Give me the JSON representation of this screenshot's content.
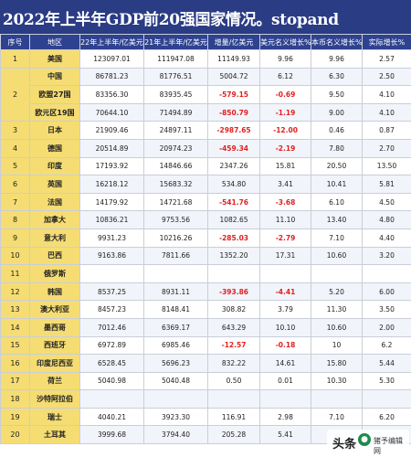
{
  "title": "2022年上半年GDP前20强国家情况。stopand",
  "headers": [
    "序号",
    "地区",
    "22年上半年/亿美元",
    "21年上半年/亿美元",
    "增量/亿美元",
    "美元名义增长%",
    "本币名义增长%",
    "实际增长%"
  ],
  "rows": [
    {
      "idx": "1",
      "region": "美国",
      "gdp22": "123097.01",
      "gdp21": "111947.08",
      "delta": "11149.93",
      "usd": "9.96",
      "local": "9.96",
      "real": "2.57"
    },
    {
      "idx": "",
      "region": "中国",
      "gdp22": "86781.23",
      "gdp21": "81776.51",
      "delta": "5004.72",
      "usd": "6.12",
      "local": "6.30",
      "real": "2.50"
    },
    {
      "idx": "2",
      "region": "欧盟27国",
      "gdp22": "83356.30",
      "gdp21": "83935.45",
      "delta": "-579.15",
      "usd": "-0.69",
      "local": "9.50",
      "real": "4.10"
    },
    {
      "idx": "",
      "region": "欧元区19国",
      "gdp22": "70644.10",
      "gdp21": "71494.89",
      "delta": "-850.79",
      "usd": "-1.19",
      "local": "9.00",
      "real": "4.10"
    },
    {
      "idx": "3",
      "region": "日本",
      "gdp22": "21909.46",
      "gdp21": "24897.11",
      "delta": "-2987.65",
      "usd": "-12.00",
      "local": "0.46",
      "real": "0.87"
    },
    {
      "idx": "4",
      "region": "德国",
      "gdp22": "20514.89",
      "gdp21": "20974.23",
      "delta": "-459.34",
      "usd": "-2.19",
      "local": "7.80",
      "real": "2.70"
    },
    {
      "idx": "5",
      "region": "印度",
      "gdp22": "17193.92",
      "gdp21": "14846.66",
      "delta": "2347.26",
      "usd": "15.81",
      "local": "20.50",
      "real": "13.50"
    },
    {
      "idx": "6",
      "region": "英国",
      "gdp22": "16218.12",
      "gdp21": "15683.32",
      "delta": "534.80",
      "usd": "3.41",
      "local": "10.41",
      "real": "5.81"
    },
    {
      "idx": "7",
      "region": "法国",
      "gdp22": "14179.92",
      "gdp21": "14721.68",
      "delta": "-541.76",
      "usd": "-3.68",
      "local": "6.10",
      "real": "4.50"
    },
    {
      "idx": "8",
      "region": "加拿大",
      "gdp22": "10836.21",
      "gdp21": "9753.56",
      "delta": "1082.65",
      "usd": "11.10",
      "local": "13.40",
      "real": "4.80"
    },
    {
      "idx": "9",
      "region": "意大利",
      "gdp22": "9931.23",
      "gdp21": "10216.26",
      "delta": "-285.03",
      "usd": "-2.79",
      "local": "7.10",
      "real": "4.40"
    },
    {
      "idx": "10",
      "region": "巴西",
      "gdp22": "9163.86",
      "gdp21": "7811.66",
      "delta": "1352.20",
      "usd": "17.31",
      "local": "10.60",
      "real": "3.20"
    },
    {
      "idx": "11",
      "region": "俄罗斯",
      "gdp22": "",
      "gdp21": "",
      "delta": "",
      "usd": "",
      "local": "",
      "real": ""
    },
    {
      "idx": "12",
      "region": "韩国",
      "gdp22": "8537.25",
      "gdp21": "8931.11",
      "delta": "-393.86",
      "usd": "-4.41",
      "local": "5.20",
      "real": "6.00"
    },
    {
      "idx": "13",
      "region": "澳大利亚",
      "gdp22": "8457.23",
      "gdp21": "8148.41",
      "delta": "308.82",
      "usd": "3.79",
      "local": "11.30",
      "real": "3.50"
    },
    {
      "idx": "14",
      "region": "墨西哥",
      "gdp22": "7012.46",
      "gdp21": "6369.17",
      "delta": "643.29",
      "usd": "10.10",
      "local": "10.60",
      "real": "2.00"
    },
    {
      "idx": "15",
      "region": "西班牙",
      "gdp22": "6972.89",
      "gdp21": "6985.46",
      "delta": "-12.57",
      "usd": "-0.18",
      "local": "10",
      "real": "6.2"
    },
    {
      "idx": "16",
      "region": "印度尼西亚",
      "gdp22": "6528.45",
      "gdp21": "5696.23",
      "delta": "832.22",
      "usd": "14.61",
      "local": "15.80",
      "real": "5.44"
    },
    {
      "idx": "17",
      "region": "荷兰",
      "gdp22": "5040.98",
      "gdp21": "5040.48",
      "delta": "0.50",
      "usd": "0.01",
      "local": "10.30",
      "real": "5.30"
    },
    {
      "idx": "18",
      "region": "沙特阿拉伯",
      "gdp22": "",
      "gdp21": "",
      "delta": "",
      "usd": "",
      "local": "",
      "real": ""
    },
    {
      "idx": "19",
      "region": "瑞士",
      "gdp22": "4040.21",
      "gdp21": "3923.30",
      "delta": "116.91",
      "usd": "2.98",
      "local": "7.10",
      "real": "6.20"
    },
    {
      "idx": "20",
      "region": "土耳其",
      "gdp22": "3999.68",
      "gdp21": "3794.40",
      "delta": "205.28",
      "usd": "5.41",
      "local": "",
      "real": ""
    }
  ],
  "watermark": {
    "text": "头条",
    "sub": "猪予编辑网"
  }
}
